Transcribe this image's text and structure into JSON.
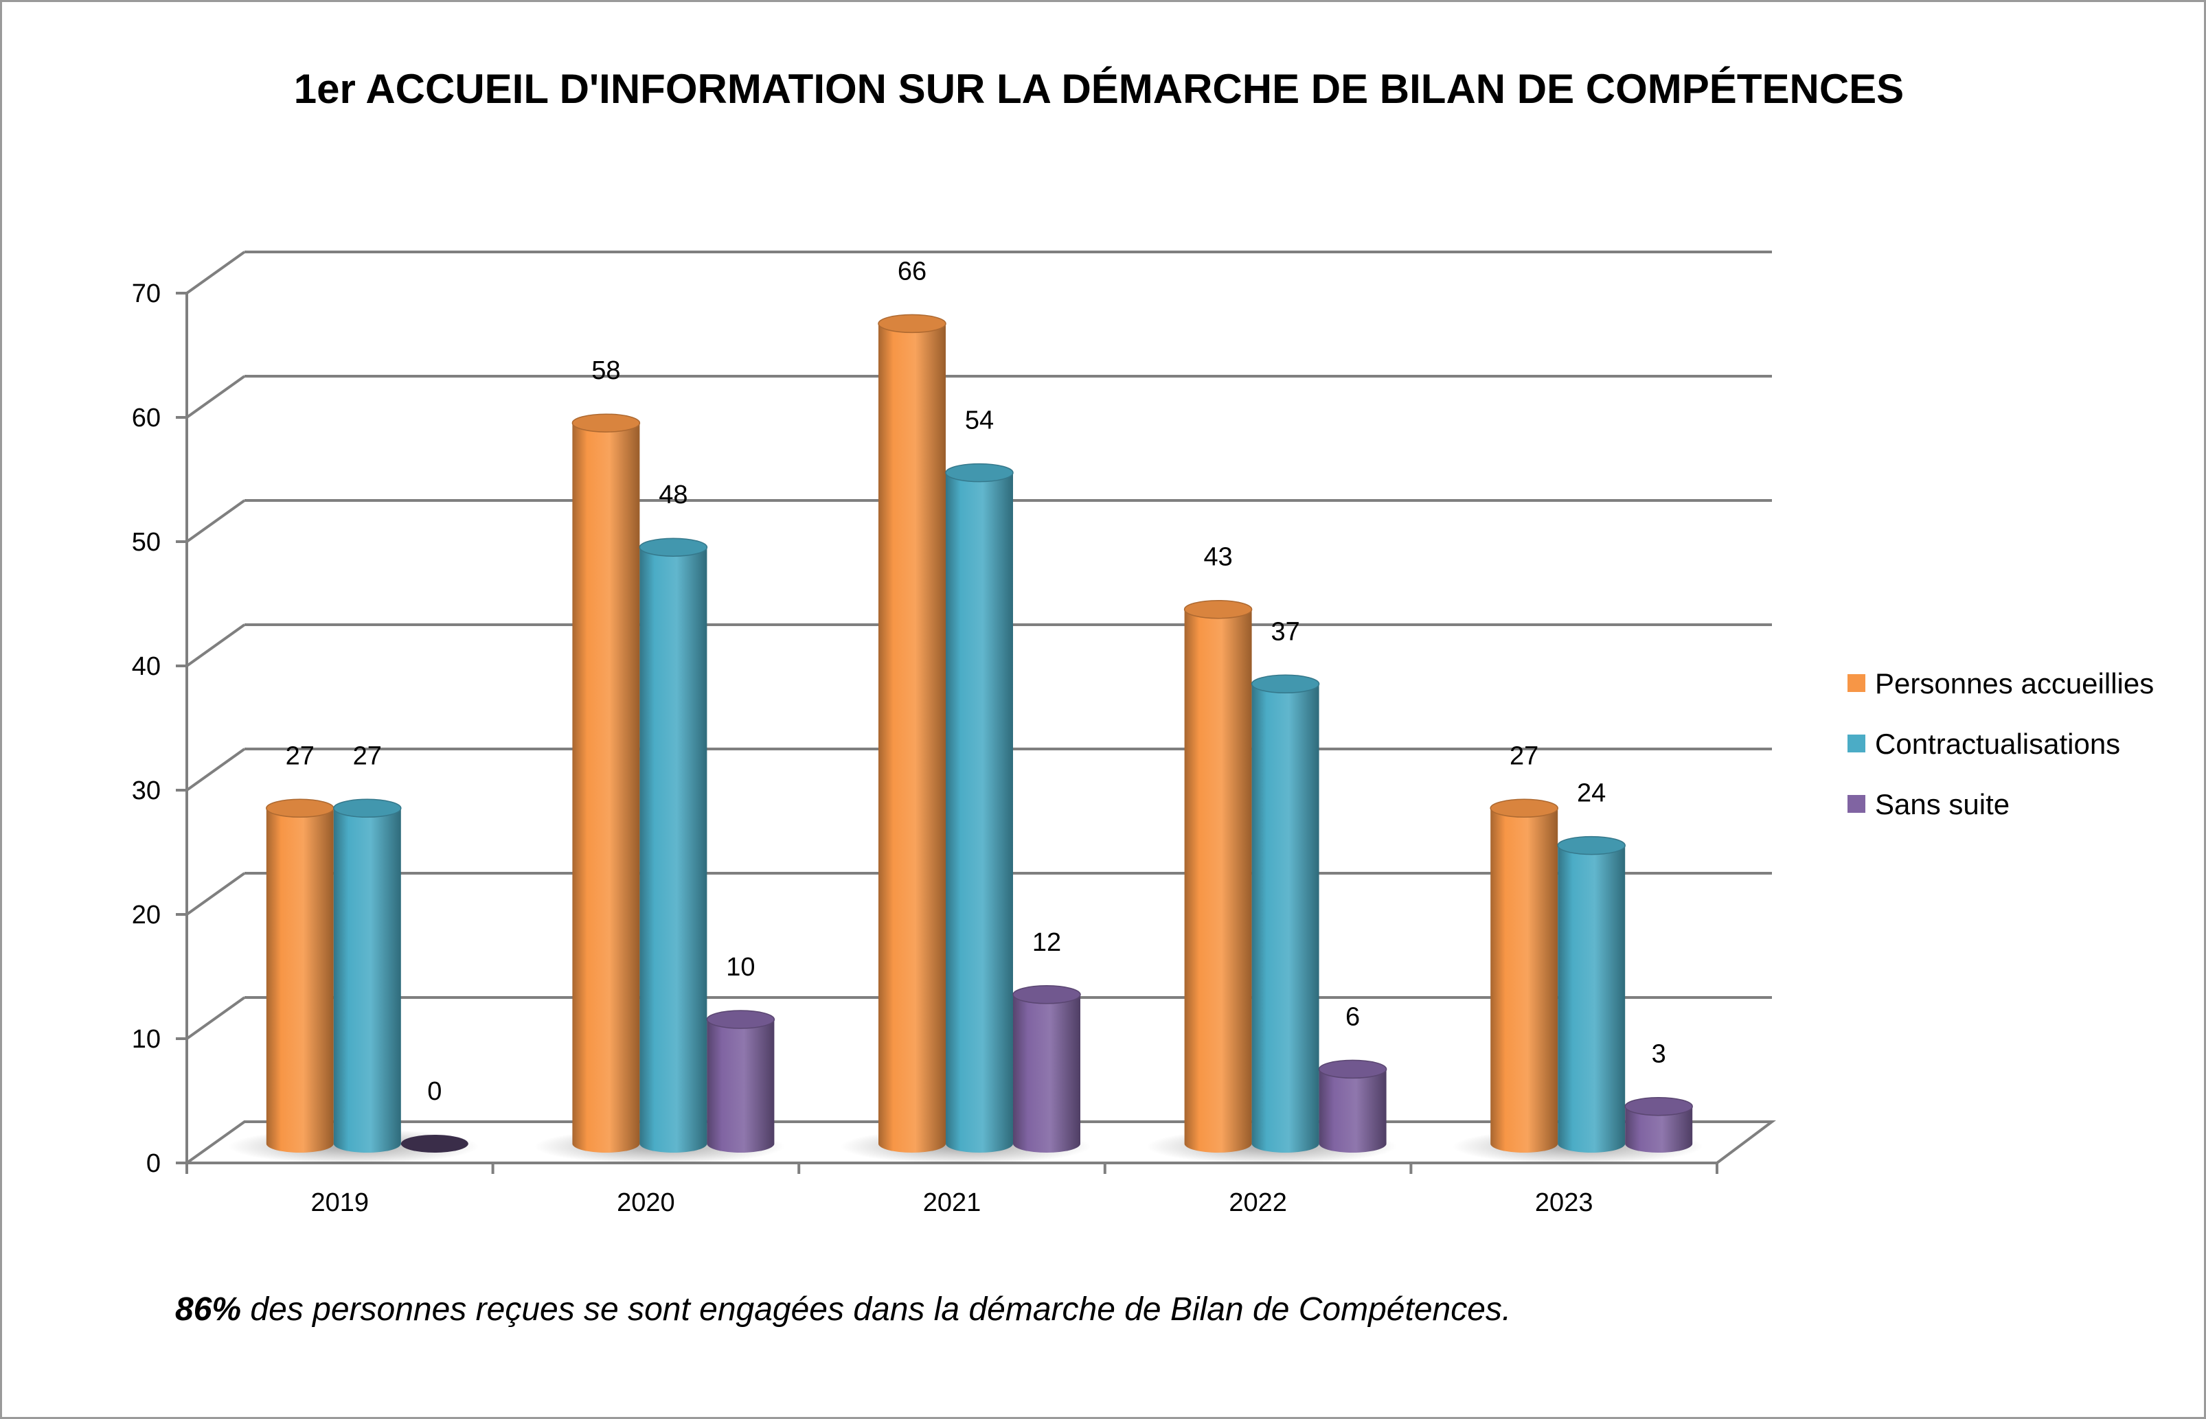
{
  "chart_data": {
    "type": "bar",
    "title": "1er ACCUEIL D'INFORMATION SUR LA DÉMARCHE DE BILAN DE COMPÉTENCES",
    "categories": [
      "2019",
      "2020",
      "2021",
      "2022",
      "2023"
    ],
    "series": [
      {
        "name": "Personnes accueillies",
        "values": [
          27,
          58,
          66,
          43,
          27
        ],
        "color": "#f79646"
      },
      {
        "name": "Contractualisations",
        "values": [
          27,
          48,
          54,
          37,
          24
        ],
        "color": "#4bacc6"
      },
      {
        "name": "Sans suite",
        "values": [
          0,
          10,
          12,
          6,
          3
        ],
        "color": "#8064a2"
      }
    ],
    "ylim": [
      0,
      70
    ],
    "yticks": [
      0,
      10,
      20,
      30,
      40,
      50,
      60,
      70
    ],
    "grid": true,
    "legend": "right",
    "style": "3d-cylinder",
    "data_labels": true
  },
  "footnote": {
    "emphasis": "86%",
    "text": " des personnes reçues se sont engagées dans la démarche de Bilan de Compétences."
  }
}
